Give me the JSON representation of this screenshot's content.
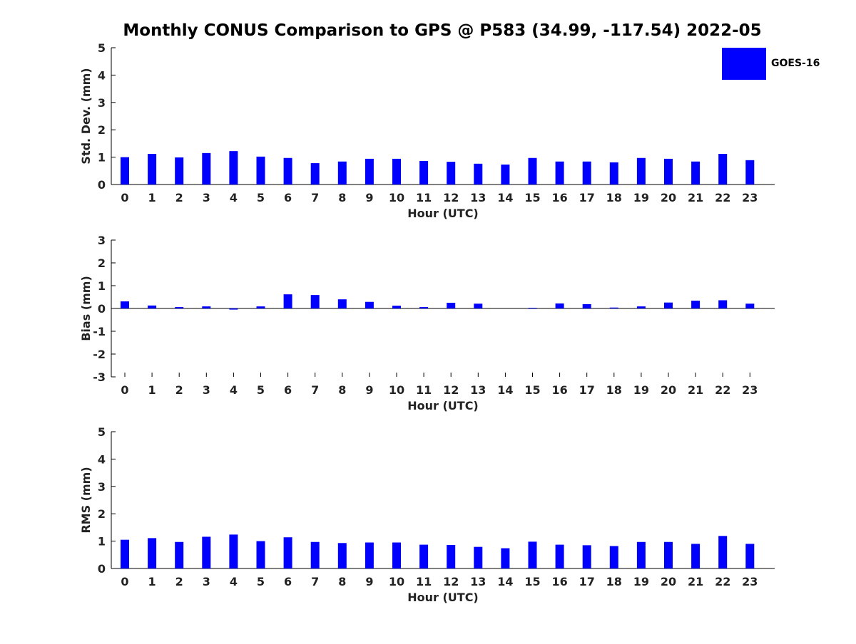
{
  "title": "Monthly CONUS Comparison to GPS @ P583 (34.99, -117.54) 2022-05",
  "legend": {
    "label": "GOES-16",
    "color": "#0000ff"
  },
  "chart_data": [
    {
      "type": "bar",
      "name": "std-dev",
      "xlabel": "Hour (UTC)",
      "ylabel": "Std. Dev. (mm)",
      "ylim": [
        0,
        5
      ],
      "yticks": [
        "0",
        "1",
        "2",
        "3",
        "4",
        "5"
      ],
      "categories": [
        "0",
        "1",
        "2",
        "3",
        "4",
        "5",
        "6",
        "7",
        "8",
        "9",
        "10",
        "11",
        "12",
        "13",
        "14",
        "15",
        "16",
        "17",
        "18",
        "19",
        "20",
        "21",
        "22",
        "23"
      ],
      "series": [
        {
          "name": "GOES-16",
          "color": "#0000ff",
          "values": [
            1.0,
            1.12,
            0.99,
            1.15,
            1.22,
            1.02,
            0.97,
            0.78,
            0.84,
            0.94,
            0.94,
            0.86,
            0.83,
            0.76,
            0.73,
            0.97,
            0.84,
            0.84,
            0.81,
            0.97,
            0.94,
            0.84,
            1.12,
            0.89
          ]
        }
      ]
    },
    {
      "type": "bar",
      "name": "bias",
      "xlabel": "Hour (UTC)",
      "ylabel": "Bias (mm)",
      "ylim": [
        -3,
        3
      ],
      "yticks": [
        "-3",
        "-2",
        "-1",
        "0",
        "1",
        "2",
        "3"
      ],
      "categories": [
        "0",
        "1",
        "2",
        "3",
        "4",
        "5",
        "6",
        "7",
        "8",
        "9",
        "10",
        "11",
        "12",
        "13",
        "14",
        "15",
        "16",
        "17",
        "18",
        "19",
        "20",
        "21",
        "22",
        "23"
      ],
      "series": [
        {
          "name": "GOES-16",
          "color": "#0000ff",
          "values": [
            0.31,
            0.13,
            0.06,
            0.09,
            -0.05,
            0.09,
            0.62,
            0.59,
            0.4,
            0.29,
            0.12,
            0.06,
            0.25,
            0.21,
            0.0,
            0.03,
            0.22,
            0.19,
            0.04,
            0.09,
            0.26,
            0.34,
            0.36,
            0.21
          ]
        }
      ]
    },
    {
      "type": "bar",
      "name": "rms",
      "xlabel": "Hour (UTC)",
      "ylabel": "RMS (mm)",
      "ylim": [
        0,
        5
      ],
      "yticks": [
        "0",
        "1",
        "2",
        "3",
        "4",
        "5"
      ],
      "categories": [
        "0",
        "1",
        "2",
        "3",
        "4",
        "5",
        "6",
        "7",
        "8",
        "9",
        "10",
        "11",
        "12",
        "13",
        "14",
        "15",
        "16",
        "17",
        "18",
        "19",
        "20",
        "21",
        "22",
        "23"
      ],
      "series": [
        {
          "name": "GOES-16",
          "color": "#0000ff",
          "values": [
            1.05,
            1.11,
            0.97,
            1.16,
            1.24,
            1.0,
            1.14,
            0.97,
            0.93,
            0.95,
            0.95,
            0.87,
            0.86,
            0.79,
            0.74,
            0.98,
            0.87,
            0.85,
            0.82,
            0.97,
            0.97,
            0.9,
            1.19,
            0.9
          ]
        }
      ]
    }
  ]
}
